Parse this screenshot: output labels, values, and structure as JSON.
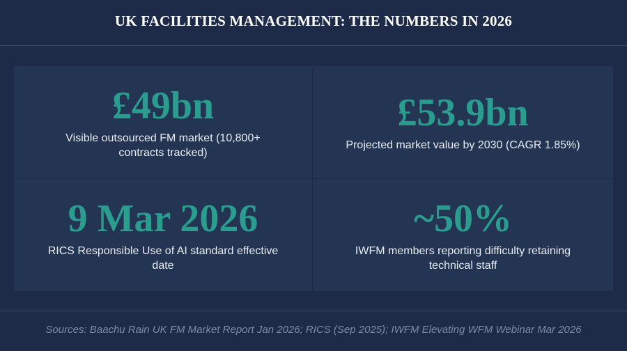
{
  "header": {
    "title": "UK FACILITIES MANAGEMENT: THE NUMBERS IN 2026"
  },
  "stats": [
    {
      "value": "£49bn",
      "label": "Visible outsourced FM market (10,800+ contracts tracked)"
    },
    {
      "value": "£53.9bn",
      "label": "Projected market value by 2030 (CAGR 1.85%)"
    },
    {
      "value": "9 Mar 2026",
      "label": "RICS Responsible Use of AI standard effective date"
    },
    {
      "value": "~50%",
      "label": "IWFM members reporting difficulty retaining technical staff"
    }
  ],
  "footer": {
    "sources": "Sources: Baachu Rain UK FM Market Report Jan 2026; RICS (Sep 2025); IWFM Elevating WFM Webinar Mar 2026"
  }
}
